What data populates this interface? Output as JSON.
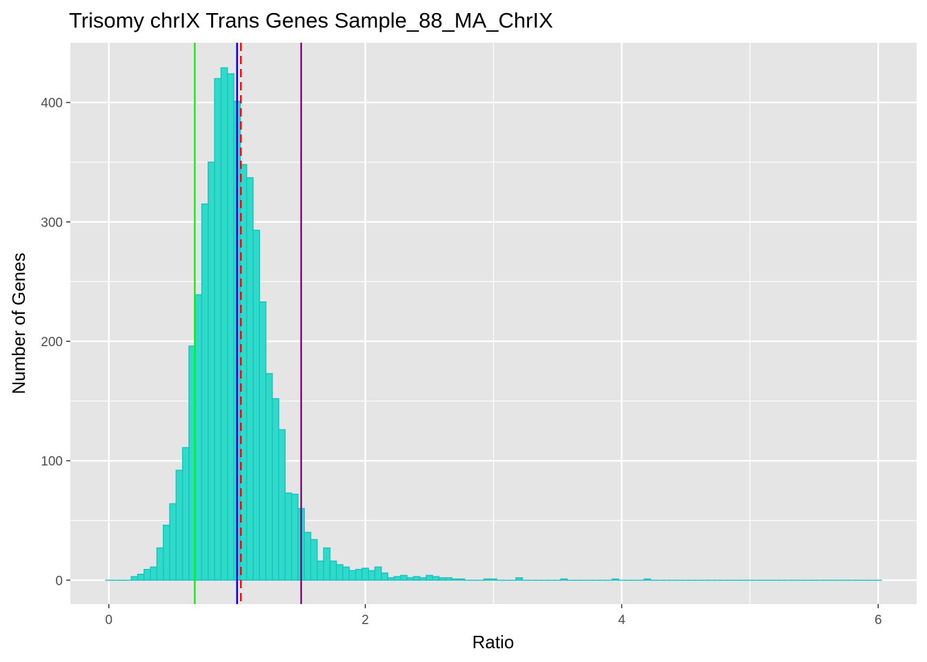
{
  "chart_data": {
    "type": "bar",
    "title": "Trisomy chrIX Trans Genes Sample_88_MA_ChrIX",
    "xlabel": "Ratio",
    "ylabel": "Number of Genes",
    "xlim": [
      -0.3,
      6.3
    ],
    "ylim": [
      -20,
      450
    ],
    "x_ticks": [
      0,
      2,
      4,
      6
    ],
    "x_tick_labels": [
      "0",
      "2",
      "4",
      "6"
    ],
    "y_ticks": [
      0,
      100,
      200,
      300,
      400
    ],
    "y_tick_labels": [
      "0",
      "100",
      "200",
      "300",
      "400"
    ],
    "grid": true,
    "bin_width": 0.05,
    "x": [
      0.0,
      0.05,
      0.1,
      0.15,
      0.2,
      0.25,
      0.3,
      0.35,
      0.4,
      0.45,
      0.5,
      0.55,
      0.6,
      0.65,
      0.7,
      0.75,
      0.8,
      0.85,
      0.9,
      0.95,
      1.0,
      1.05,
      1.1,
      1.15,
      1.2,
      1.25,
      1.3,
      1.35,
      1.4,
      1.45,
      1.5,
      1.55,
      1.6,
      1.65,
      1.7,
      1.75,
      1.8,
      1.85,
      1.9,
      1.95,
      2.0,
      2.05,
      2.1,
      2.15,
      2.2,
      2.25,
      2.3,
      2.35,
      2.4,
      2.45,
      2.5,
      2.55,
      2.6,
      2.65,
      2.7,
      2.75,
      2.8,
      2.85,
      2.9,
      2.95,
      3.0,
      3.05,
      3.1,
      3.15,
      3.2,
      3.25,
      3.3,
      3.35,
      3.4,
      3.45,
      3.5,
      3.55,
      3.6,
      3.65,
      3.7,
      3.75,
      3.8,
      3.85,
      3.9,
      3.95,
      4.0,
      4.05,
      4.1,
      4.15,
      4.2,
      4.25,
      4.3,
      4.35,
      4.4,
      4.45,
      4.5,
      4.55,
      4.6,
      4.65,
      4.7,
      4.75,
      4.8,
      4.85,
      4.9,
      4.95,
      5.0,
      5.05,
      5.1,
      5.15,
      5.2,
      5.25,
      5.3,
      5.35,
      5.4,
      5.45,
      5.5,
      5.55,
      5.6,
      5.65,
      5.7,
      5.75,
      5.8,
      5.85,
      5.9,
      5.95,
      6.0
    ],
    "values": [
      0,
      0,
      0,
      0,
      3,
      5,
      9,
      11,
      27,
      46,
      64,
      92,
      111,
      196,
      239,
      315,
      350,
      420,
      429,
      424,
      401,
      348,
      337,
      293,
      233,
      173,
      152,
      126,
      73,
      72,
      60,
      40,
      34,
      16,
      27,
      16,
      13,
      11,
      8,
      9,
      10,
      8,
      11,
      6,
      2,
      3,
      4,
      2,
      3,
      2,
      4,
      3,
      2,
      2,
      1,
      1,
      0,
      0,
      0,
      1,
      1,
      0,
      0,
      0,
      2,
      0,
      0,
      0,
      0,
      0,
      0,
      1,
      0,
      0,
      0,
      0,
      0,
      0,
      0,
      1,
      0,
      0,
      0,
      0,
      1,
      0,
      0,
      0,
      0,
      0,
      0,
      0,
      0,
      0,
      0,
      0,
      0,
      0,
      0,
      0,
      0,
      0,
      0,
      0,
      0,
      0,
      0,
      0,
      0,
      0,
      0,
      0,
      0,
      0,
      0,
      0,
      0,
      0,
      0,
      0,
      0
    ],
    "bar_fill": "#2EDBC8",
    "bar_outline": "#1FC1C1",
    "panel_background": "#E5E5E5",
    "grid_color": "#FFFFFF",
    "reference_lines": [
      {
        "x": 0.67,
        "color": "#00FF00",
        "style": "solid"
      },
      {
        "x": 1.0,
        "color": "#000000",
        "style": "solid"
      },
      {
        "x": 1.0,
        "color": "#0000FF",
        "style": "solid"
      },
      {
        "x": 1.03,
        "color": "#FF0000",
        "style": "dashed"
      },
      {
        "x": 1.5,
        "color": "#800080",
        "style": "solid"
      }
    ]
  }
}
